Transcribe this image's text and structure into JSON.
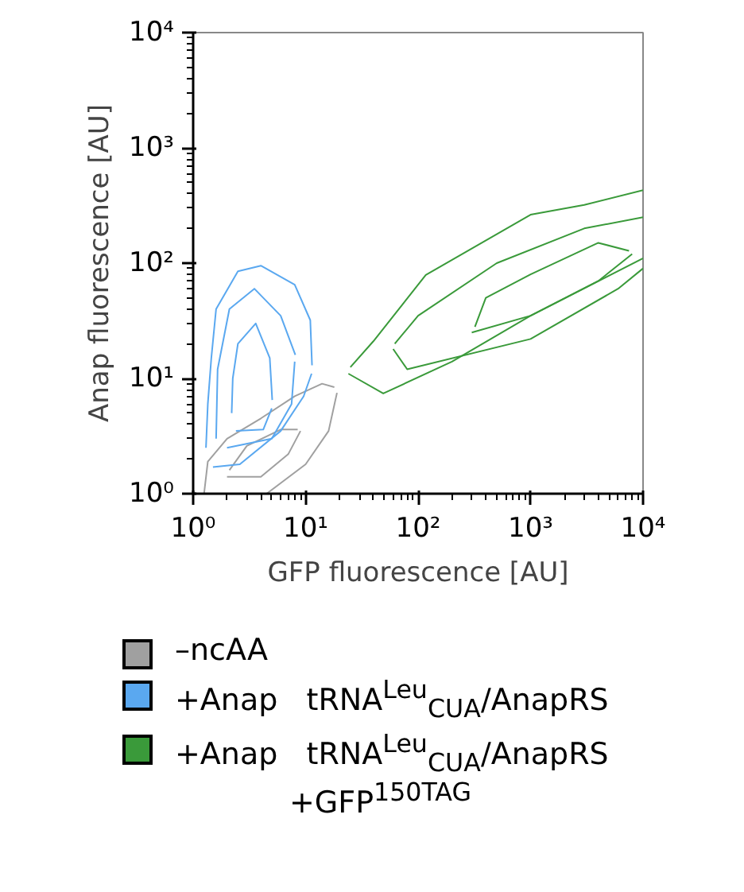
{
  "chart_data": {
    "type": "line",
    "xlabel": "GFP fluorescence [AU]",
    "ylabel": "Anap fluorescence [AU]",
    "log": "xy",
    "grid": false,
    "legend": "bottom",
    "line_style": "solid",
    "marker": "none",
    "xlim": [
      1,
      10000
    ],
    "ylim": [
      1,
      10000
    ],
    "xticks": [
      {
        "value": 1,
        "label": "10⁰"
      },
      {
        "value": 10,
        "label": "10¹"
      },
      {
        "value": 100,
        "label": "10²"
      },
      {
        "value": 1000,
        "label": "10³"
      },
      {
        "value": 10000,
        "label": "10⁴"
      }
    ],
    "yticks": [
      {
        "value": 1,
        "label": "10⁰"
      },
      {
        "value": 10,
        "label": "10¹"
      },
      {
        "value": 100,
        "label": "10²"
      },
      {
        "value": 1000,
        "label": "10³"
      },
      {
        "value": 10000,
        "label": "10⁴"
      }
    ],
    "series": [
      {
        "name": "–ncAA",
        "color": "#a0a0a0",
        "x": [
          4.5,
          10,
          16,
          19
        ],
        "values": [
          1.0,
          1.8,
          3.5,
          7.5
        ]
      },
      {
        "color": "#a0a0a0",
        "x": [
          1.25,
          1.35,
          2,
          4,
          8,
          14,
          18
        ],
        "values": [
          1.0,
          1.9,
          3,
          4.5,
          7,
          9,
          8.4
        ]
      },
      {
        "color": "#a0a0a0",
        "x": [
          2,
          4,
          7,
          9
        ],
        "values": [
          1.4,
          1.4,
          2.2,
          3.5
        ]
      },
      {
        "color": "#a0a0a0",
        "x": [
          2.1,
          3,
          6,
          8.5
        ],
        "values": [
          1.6,
          2.6,
          3.6,
          3.6
        ]
      },
      {
        "name": "+Anap   tRNA$^{Leu}$$_{CUA}$/AnapRS",
        "color": "#5aa8f0",
        "x": [
          1.5,
          2.6,
          6,
          9.6,
          11.3
        ],
        "values": [
          1.7,
          1.8,
          3.5,
          7,
          11
        ]
      },
      {
        "color": "#5aa8f0",
        "x": [
          1.3,
          1.35,
          1.45,
          1.6,
          2.5,
          4,
          8,
          11,
          11.4
        ],
        "values": [
          2.5,
          6,
          15,
          40,
          85,
          95,
          65,
          32,
          13
        ]
      },
      {
        "color": "#5aa8f0",
        "x": [
          2,
          5,
          7.5,
          8
        ],
        "values": [
          2.5,
          3,
          6,
          14
        ]
      },
      {
        "color": "#5aa8f0",
        "x": [
          1.6,
          1.65,
          2.1,
          3.5,
          6,
          8.1
        ],
        "values": [
          3,
          12,
          40,
          60,
          35,
          16
        ]
      },
      {
        "color": "#5aa8f0",
        "x": [
          2.4,
          4.2,
          5
        ],
        "values": [
          3.5,
          3.6,
          5.5
        ]
      },
      {
        "color": "#5aa8f0",
        "x": [
          2.2,
          2.25,
          2.5,
          3.6,
          4.8,
          5.05
        ],
        "values": [
          5,
          10,
          20,
          30,
          15,
          6.5
        ]
      },
      {
        "name": "+Anap   tRNA$^{Leu}$$_{CUA}$/AnapRS\n+GFP$^{150TAG}$",
        "color": "#3a9a3a",
        "x": [
          24,
          49,
          200,
          1000,
          10000
        ],
        "values": [
          11,
          7.4,
          14,
          35,
          110
        ]
      },
      {
        "color": "#3a9a3a",
        "x": [
          25,
          40,
          117,
          1000,
          3000,
          10000
        ],
        "values": [
          12.5,
          21,
          79,
          263,
          320,
          430
        ]
      },
      {
        "color": "#3a9a3a",
        "x": [
          60,
          80,
          1000,
          6000,
          10000
        ],
        "values": [
          18,
          12,
          22,
          60,
          90
        ]
      },
      {
        "color": "#3a9a3a",
        "x": [
          62,
          100,
          500,
          3000,
          10000
        ],
        "values": [
          20,
          35,
          100,
          200,
          250
        ]
      },
      {
        "color": "#3a9a3a",
        "x": [
          300,
          1000,
          4000,
          8000
        ],
        "values": [
          25,
          35,
          70,
          120
        ]
      },
      {
        "color": "#3a9a3a",
        "x": [
          320,
          400,
          1000,
          4000,
          7500
        ],
        "values": [
          28,
          50,
          80,
          150,
          128
        ]
      }
    ]
  }
}
